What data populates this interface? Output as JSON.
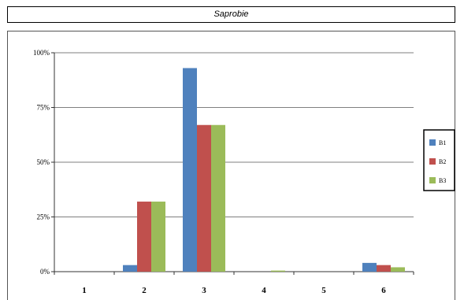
{
  "title": "Saprobie",
  "chart_data": {
    "type": "bar",
    "categories": [
      "1",
      "2",
      "3",
      "4",
      "5",
      "6"
    ],
    "series": [
      {
        "name": "B1",
        "color": "#4f81bd",
        "values": [
          0,
          3,
          93,
          0,
          0,
          4
        ]
      },
      {
        "name": "B2",
        "color": "#c0504d",
        "values": [
          0,
          32,
          67,
          0,
          0,
          3
        ]
      },
      {
        "name": "B3",
        "color": "#9bbb59",
        "values": [
          0,
          32,
          67,
          0.5,
          0,
          2
        ]
      }
    ],
    "y_ticks": [
      "0%",
      "25%",
      "50%",
      "75%",
      "100%"
    ],
    "ylim": [
      0,
      100
    ],
    "grid": true,
    "legend_position": "right"
  }
}
